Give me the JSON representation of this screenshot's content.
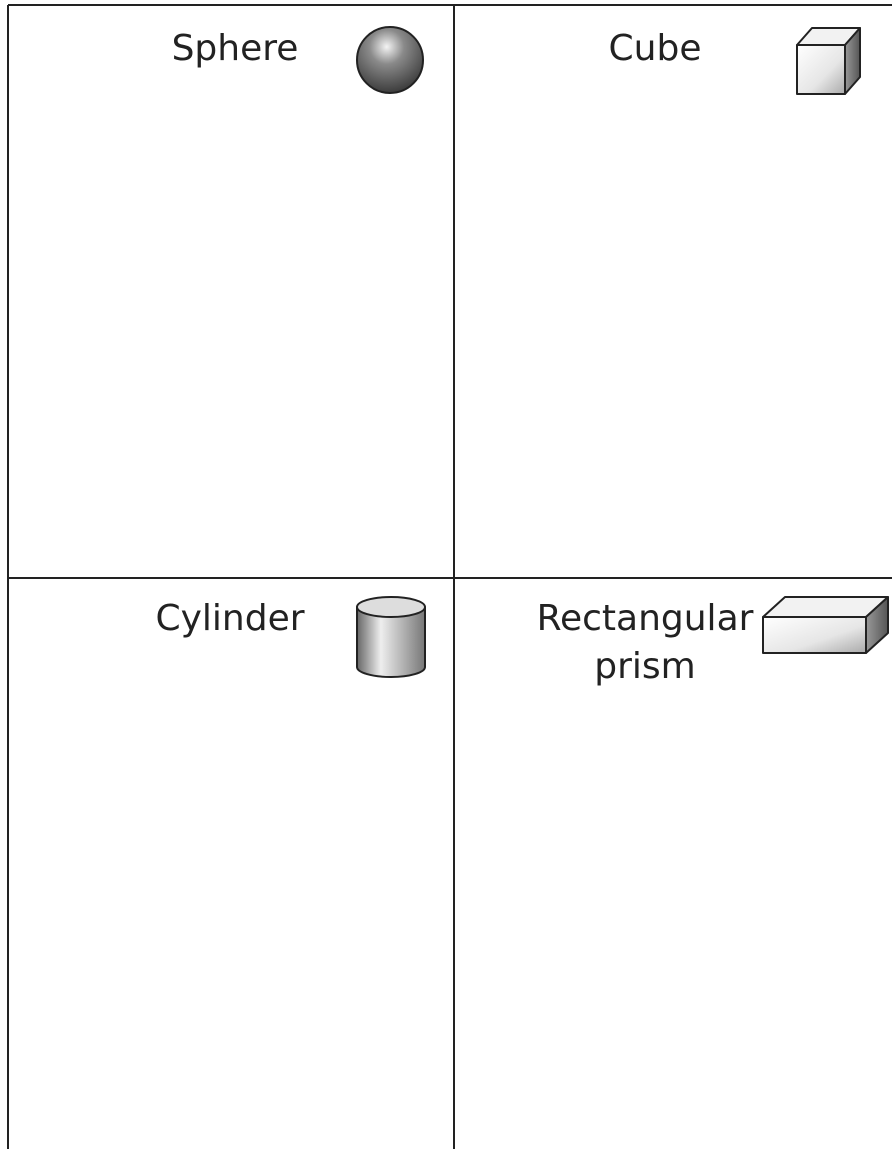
{
  "cells": [
    {
      "label": [
        "Sphere"
      ]
    },
    {
      "label": [
        "Cube"
      ]
    },
    {
      "label": [
        "Cylinder"
      ]
    },
    {
      "label": [
        "Rectangular",
        "prism"
      ]
    }
  ]
}
